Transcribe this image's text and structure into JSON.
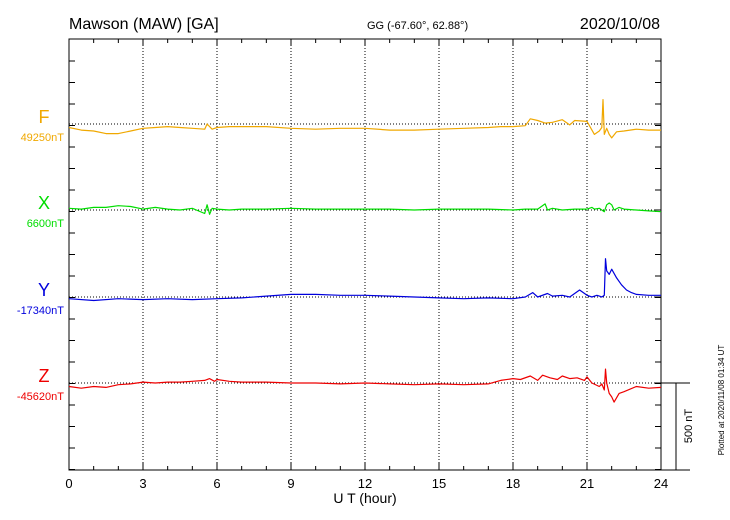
{
  "header": {
    "station": "Mawson (MAW)  [GA]",
    "coords": "GG (-67.60°,  62.88°)",
    "date": "2020/10/08"
  },
  "side_note": "Plotted at 2020/11/08 01:34 UT",
  "scale_label": "500 nT",
  "chart_data": {
    "type": "line",
    "title": "Mawson (MAW)  [GA]",
    "xlabel": "U T (hour)",
    "xlim": [
      0,
      24
    ],
    "xticks": [
      "0",
      "3",
      "6",
      "9",
      "12",
      "15",
      "18",
      "21",
      "24"
    ],
    "grid": "vertical dotted lines every 3 hours",
    "scale_bar_nT": 500,
    "colors": {
      "F": "#f0a800",
      "X": "#00dd00",
      "Y": "#0000dd",
      "Z": "#ee0000"
    },
    "series": [
      {
        "name": "F",
        "baseline_label": "49250nT",
        "baseline": 49250,
        "x": [
          0,
          0.5,
          1,
          1.5,
          2,
          2.5,
          3,
          3.5,
          4,
          4.5,
          5,
          5.5,
          5.6,
          5.8,
          6,
          6.5,
          7,
          8,
          9,
          10,
          11,
          12,
          13,
          14,
          15,
          16,
          17,
          17.5,
          18,
          18.5,
          18.7,
          19,
          19.3,
          19.6,
          20,
          20.3,
          20.5,
          21,
          21.3,
          21.5,
          21.6,
          21.65,
          21.7,
          21.8,
          21.9,
          22,
          22.2,
          22.5,
          23,
          23.5,
          24
        ],
        "values": [
          -20,
          -35,
          -40,
          -55,
          -55,
          -40,
          -25,
          -20,
          -15,
          -20,
          -25,
          -30,
          0,
          -30,
          -20,
          -15,
          -15,
          -15,
          -25,
          -30,
          -25,
          -25,
          -35,
          -35,
          -30,
          -25,
          -20,
          -15,
          -15,
          -10,
          30,
          20,
          5,
          10,
          25,
          -5,
          20,
          15,
          -60,
          -40,
          -20,
          140,
          -60,
          -25,
          -60,
          -80,
          -45,
          -40,
          -30,
          -35,
          -35
        ]
      },
      {
        "name": "X",
        "baseline_label": "6600nT",
        "baseline": 6600,
        "x": [
          0,
          0.5,
          1,
          1.5,
          2,
          2.5,
          3,
          3.5,
          4,
          4.5,
          5,
          5.5,
          5.6,
          5.7,
          5.8,
          6,
          6.5,
          7,
          8,
          9,
          10,
          11,
          12,
          13,
          14,
          15,
          16,
          17,
          18,
          18.5,
          19,
          19.3,
          19.4,
          19.6,
          20,
          20.5,
          21,
          21.2,
          21.3,
          21.5,
          21.7,
          21.8,
          21.9,
          22,
          22.1,
          22.3,
          22.5,
          23,
          23.5,
          24
        ],
        "values": [
          10,
          5,
          15,
          15,
          25,
          20,
          5,
          15,
          5,
          0,
          10,
          -20,
          30,
          -25,
          10,
          5,
          0,
          5,
          5,
          10,
          5,
          5,
          5,
          5,
          0,
          5,
          5,
          5,
          0,
          5,
          5,
          35,
          0,
          10,
          0,
          5,
          5,
          15,
          5,
          10,
          -10,
          30,
          40,
          30,
          0,
          15,
          5,
          0,
          -5,
          -10
        ]
      },
      {
        "name": "Y",
        "baseline_label": "-17340nT",
        "baseline": -17340,
        "x": [
          0,
          1,
          2,
          3,
          4,
          5,
          6,
          7,
          8,
          9,
          10,
          11,
          12,
          13,
          14,
          15,
          16,
          17,
          18,
          18.5,
          18.8,
          19,
          19.4,
          19.6,
          20,
          20.3,
          20.7,
          21,
          21.2,
          21.4,
          21.5,
          21.6,
          21.7,
          21.75,
          21.8,
          21.9,
          22,
          22.2,
          22.4,
          22.6,
          22.8,
          23,
          23.5,
          24
        ],
        "values": [
          -10,
          -20,
          -10,
          -15,
          -10,
          -15,
          -10,
          -5,
          5,
          15,
          15,
          10,
          10,
          5,
          0,
          -5,
          -10,
          -5,
          -10,
          0,
          25,
          0,
          20,
          5,
          10,
          0,
          40,
          10,
          0,
          10,
          5,
          0,
          10,
          220,
          150,
          130,
          160,
          110,
          70,
          40,
          25,
          15,
          10,
          10
        ]
      },
      {
        "name": "Z",
        "baseline_label": "-45620nT",
        "baseline": -45620,
        "x": [
          0,
          0.5,
          1,
          1.5,
          2,
          2.5,
          3,
          3.5,
          4,
          4.5,
          5,
          5.5,
          5.7,
          5.9,
          6,
          6.5,
          7,
          8,
          9,
          10,
          11,
          12,
          13,
          14,
          15,
          16,
          17,
          17.5,
          18,
          18.3,
          18.7,
          19,
          19.2,
          19.5,
          19.8,
          20,
          20.3,
          20.6,
          20.9,
          21,
          21.2,
          21.5,
          21.6,
          21.7,
          21.75,
          21.8,
          21.9,
          22,
          22.1,
          22.3,
          22.5,
          23,
          23.5,
          24
        ],
        "values": [
          -20,
          -30,
          -20,
          -25,
          -10,
          -5,
          5,
          0,
          5,
          5,
          10,
          15,
          25,
          10,
          20,
          10,
          5,
          5,
          0,
          0,
          -5,
          0,
          -5,
          -10,
          -5,
          -10,
          -5,
          15,
          25,
          20,
          40,
          15,
          45,
          30,
          20,
          40,
          25,
          30,
          15,
          35,
          0,
          -20,
          -5,
          -40,
          80,
          0,
          -60,
          -80,
          -110,
          -60,
          -50,
          -20,
          -30,
          -25
        ]
      }
    ]
  }
}
